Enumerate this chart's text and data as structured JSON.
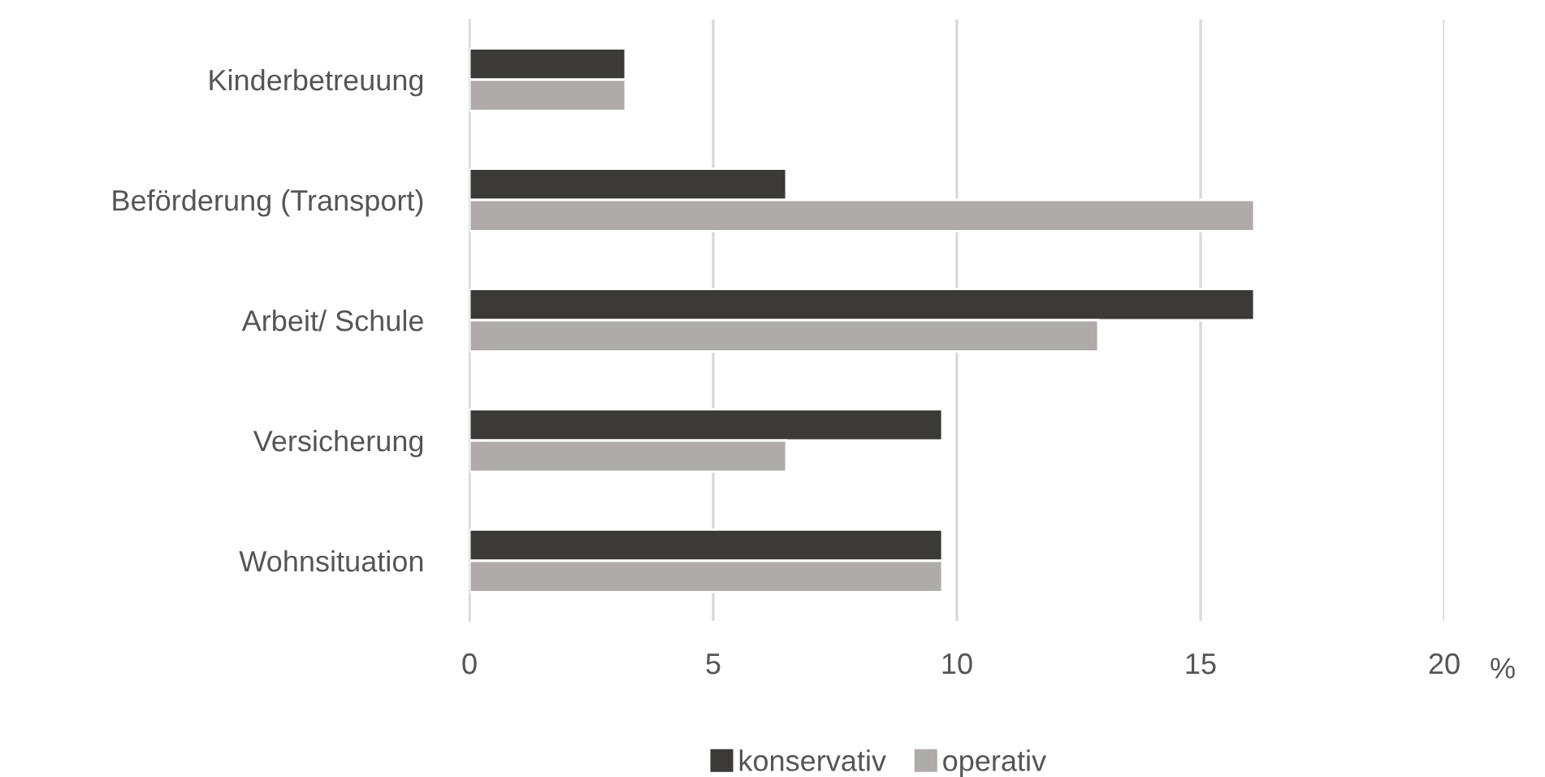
{
  "chart_data": {
    "type": "bar",
    "orientation": "horizontal",
    "categories": [
      "Kinderbetreuung",
      "Beförderung (Transport)",
      "Arbeit/ Schule",
      "Versicherung",
      "Wohnsituation"
    ],
    "series": [
      {
        "name": "konservativ",
        "color": "#3b3a38",
        "values": [
          3.2,
          6.5,
          16.1,
          9.7,
          9.7
        ]
      },
      {
        "name": "operativ",
        "color": "#afabaa",
        "values": [
          3.2,
          16.1,
          12.9,
          6.5,
          9.7
        ]
      }
    ],
    "xlabel": "%",
    "xlim": [
      0,
      20
    ],
    "xticks": [
      0,
      5,
      10,
      15,
      20
    ],
    "grid": "x",
    "legend": "bottom"
  }
}
